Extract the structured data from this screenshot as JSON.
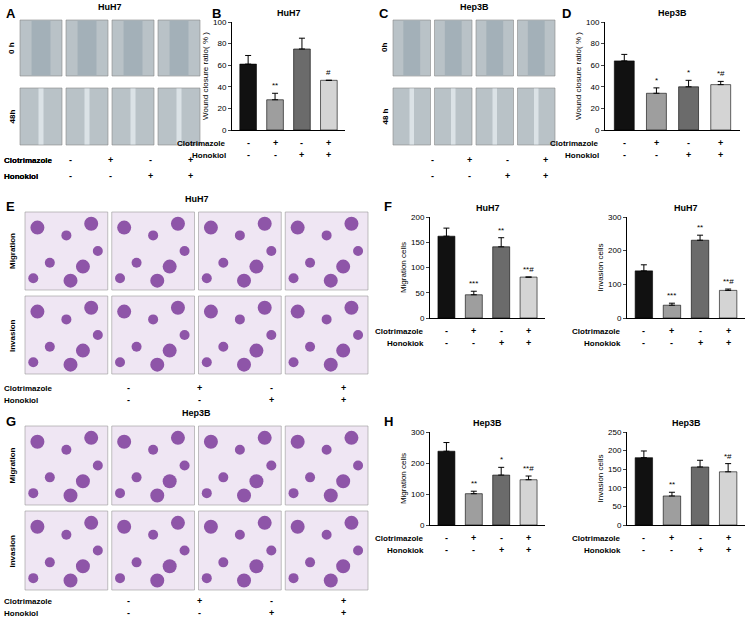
{
  "chart_data": [
    {
      "panel": "B",
      "type": "bar",
      "title": "HuH7",
      "y_label": "Wound closure ratio( % )",
      "categories": [
        null,
        null,
        null,
        null
      ],
      "values": [
        61,
        28,
        75,
        46
      ],
      "errors": [
        8,
        6,
        10,
        0
      ],
      "colors": [
        "#111111",
        "#9e9e9e",
        "#6b6b6b",
        "#d4d4d4"
      ],
      "significance": [
        null,
        "**",
        null,
        "#"
      ],
      "treatments": [
        {
          "label": "Clotrimazole",
          "signs": [
            "-",
            "+",
            "-",
            "+"
          ]
        },
        {
          "label": "Honokiol",
          "signs": [
            "-",
            "-",
            "+",
            "+"
          ]
        }
      ],
      "ylim": [
        0,
        100
      ],
      "yticks": [
        0,
        20,
        40,
        60,
        80,
        100
      ],
      "grid": false,
      "tick_labels": "y"
    },
    {
      "panel": "D",
      "type": "bar",
      "title": "Hep3B",
      "y_label": "Wound closure ratio( % )",
      "categories": [
        null,
        null,
        null,
        null
      ],
      "values": [
        64,
        34,
        40,
        42
      ],
      "errors": [
        6,
        5,
        6,
        3
      ],
      "colors": [
        "#111111",
        "#9e9e9e",
        "#6b6b6b",
        "#d4d4d4"
      ],
      "significance": [
        null,
        "*",
        "*",
        "*#"
      ],
      "treatments": [
        {
          "label": "Clotrimazole",
          "signs": [
            "-",
            "+",
            "-",
            "+"
          ]
        },
        {
          "label": "Honokiol",
          "signs": [
            "-",
            "-",
            "+",
            "+"
          ]
        }
      ],
      "ylim": [
        0,
        100
      ],
      "yticks": [
        0,
        20,
        40,
        60,
        80,
        100
      ],
      "grid": false,
      "tick_labels": "y"
    },
    {
      "panel": "F",
      "type": "bar",
      "title": "HuH7",
      "y_label": "Migration cells",
      "categories": [
        null,
        null,
        null,
        null
      ],
      "values": [
        162,
        46,
        141,
        81
      ],
      "errors": [
        16,
        7,
        18,
        0
      ],
      "colors": [
        "#111111",
        "#9e9e9e",
        "#6b6b6b",
        "#d4d4d4"
      ],
      "significance": [
        null,
        "***",
        "**",
        "**#"
      ],
      "treatments": [
        {
          "label": "Clotrimazole",
          "signs": [
            "-",
            "+",
            "-",
            "+"
          ]
        },
        {
          "label": "Honokiok",
          "signs": [
            "-",
            "-",
            "+",
            "+"
          ]
        }
      ],
      "ylim": [
        0,
        200
      ],
      "yticks": [
        0,
        50,
        100,
        150,
        200
      ],
      "grid": false,
      "tick_labels": "y"
    },
    {
      "type": "bar",
      "title": "HuH7",
      "y_label": "Invasion cells",
      "categories": [
        null,
        null,
        null,
        null
      ],
      "values": [
        140,
        38,
        231,
        82
      ],
      "errors": [
        18,
        6,
        15,
        4
      ],
      "colors": [
        "#111111",
        "#9e9e9e",
        "#6b6b6b",
        "#d4d4d4"
      ],
      "significance": [
        null,
        "***",
        "**",
        "**#"
      ],
      "treatments": [
        {
          "label": "Clotrimazole",
          "signs": [
            "-",
            "+",
            "-",
            "+"
          ]
        },
        {
          "label": "Honokiok",
          "signs": [
            "-",
            "-",
            "+",
            "+"
          ]
        }
      ],
      "ylim": [
        0,
        300
      ],
      "yticks": [
        0,
        100,
        200,
        300
      ],
      "grid": false,
      "tick_labels": "y"
    },
    {
      "panel": "H",
      "type": "bar",
      "title": "Hep3B",
      "y_label": "Migration cells",
      "categories": [
        null,
        null,
        null,
        null
      ],
      "values": [
        238,
        101,
        161,
        146
      ],
      "errors": [
        28,
        8,
        25,
        12
      ],
      "colors": [
        "#111111",
        "#9e9e9e",
        "#6b6b6b",
        "#d4d4d4"
      ],
      "significance": [
        null,
        "**",
        "*",
        "**#"
      ],
      "treatments": [
        {
          "label": "Clotrimazole",
          "signs": [
            "-",
            "+",
            "-",
            "+"
          ]
        },
        {
          "label": "Honokiok",
          "signs": [
            "-",
            "-",
            "+",
            "+"
          ]
        }
      ],
      "ylim": [
        0,
        300
      ],
      "yticks": [
        0,
        100,
        200,
        300
      ],
      "grid": false,
      "tick_labels": "y"
    },
    {
      "type": "bar",
      "title": "Hep3B",
      "y_label": "Invasion cells",
      "categories": [
        null,
        null,
        null,
        null
      ],
      "values": [
        181,
        78,
        156,
        143
      ],
      "errors": [
        18,
        10,
        18,
        22
      ],
      "colors": [
        "#111111",
        "#9e9e9e",
        "#6b6b6b",
        "#d4d4d4"
      ],
      "significance": [
        null,
        "**",
        null,
        "*#"
      ],
      "treatments": [
        {
          "label": "Clotrimazole",
          "signs": [
            "-",
            "+",
            "-",
            "+"
          ]
        },
        {
          "label": "Honokiok",
          "signs": [
            "-",
            "-",
            "+",
            "+"
          ]
        }
      ],
      "ylim": [
        0,
        250
      ],
      "yticks": [
        0,
        50,
        100,
        150,
        200,
        250
      ],
      "grid": false,
      "tick_labels": "y"
    }
  ],
  "image_panels": [
    {
      "panel": "A",
      "title": "HuH7",
      "rows": [
        "0 h",
        "48h"
      ],
      "treatments": [
        {
          "label": "Clotrimazole",
          "signs": [
            "-",
            "+",
            "-",
            "+"
          ]
        },
        {
          "label": "Honokiol",
          "signs": [
            "-",
            "-",
            "+",
            "+"
          ]
        }
      ]
    },
    {
      "panel": "C",
      "title": "Hep3B",
      "rows": [
        "0h",
        "48 h"
      ],
      "treatments": [
        {
          "label": "Clotrimazole",
          "signs": [
            "-",
            "+",
            "-",
            "+"
          ]
        },
        {
          "label": "Honokiol",
          "signs": [
            "-",
            "-",
            "+",
            "+"
          ]
        }
      ]
    },
    {
      "panel": "E",
      "title": "HuH7",
      "rows": [
        "Migration",
        "Invasion"
      ],
      "treatments": [
        {
          "label": "Clotrimazole",
          "signs": [
            "-",
            "+",
            "-",
            "+"
          ]
        },
        {
          "label": "Honokiol",
          "signs": [
            "-",
            "-",
            "+",
            "+"
          ]
        }
      ]
    },
    {
      "panel": "G",
      "title": "Hep3B",
      "rows": [
        "Migration",
        "Invasion"
      ],
      "treatments": [
        {
          "label": "Clotrimazole",
          "signs": [
            "-",
            "+",
            "-",
            "+"
          ]
        },
        {
          "label": "Honokiol",
          "signs": [
            "-",
            "-",
            "+",
            "+"
          ]
        }
      ]
    }
  ]
}
